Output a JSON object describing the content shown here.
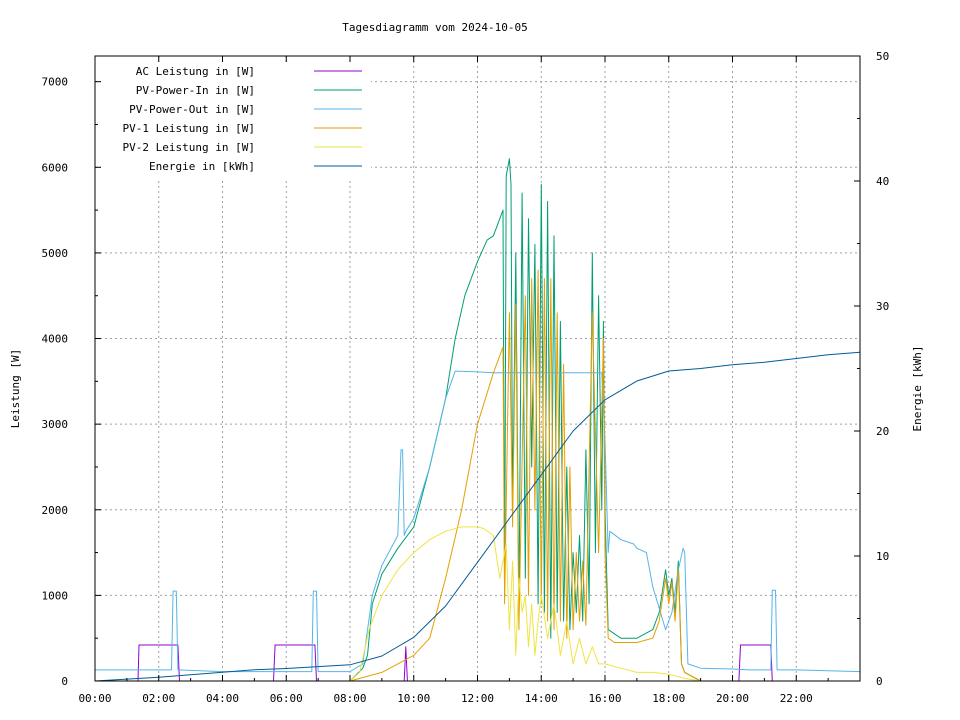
{
  "chart_data": {
    "type": "line",
    "title": "Tagesdiagramm vom 2024-10-05",
    "xlabel": "",
    "ylabel": "Leistung [W]",
    "y2label": "Energie [kWh]",
    "x_unit": "hours",
    "xlim": [
      0,
      24
    ],
    "ylim": [
      0,
      7300
    ],
    "y2lim": [
      0,
      50
    ],
    "grid": true,
    "legend_position": "top-left",
    "x_ticks": [
      {
        "v": 0,
        "label": "00:00"
      },
      {
        "v": 2,
        "label": "02:00"
      },
      {
        "v": 4,
        "label": "04:00"
      },
      {
        "v": 6,
        "label": "06:00"
      },
      {
        "v": 8,
        "label": "08:00"
      },
      {
        "v": 10,
        "label": "10:00"
      },
      {
        "v": 12,
        "label": "12:00"
      },
      {
        "v": 14,
        "label": "14:00"
      },
      {
        "v": 16,
        "label": "16:00"
      },
      {
        "v": 18,
        "label": "18:00"
      },
      {
        "v": 20,
        "label": "20:00"
      },
      {
        "v": 22,
        "label": "22:00"
      }
    ],
    "y_ticks": [
      {
        "v": 0,
        "label": "0"
      },
      {
        "v": 1000,
        "label": "1000"
      },
      {
        "v": 2000,
        "label": "2000"
      },
      {
        "v": 3000,
        "label": "3000"
      },
      {
        "v": 4000,
        "label": "4000"
      },
      {
        "v": 5000,
        "label": "5000"
      },
      {
        "v": 6000,
        "label": "6000"
      },
      {
        "v": 7000,
        "label": "7000"
      }
    ],
    "y2_ticks": [
      {
        "v": 0,
        "label": "0"
      },
      {
        "v": 10,
        "label": "10"
      },
      {
        "v": 20,
        "label": "20"
      },
      {
        "v": 30,
        "label": "30"
      },
      {
        "v": 40,
        "label": "40"
      },
      {
        "v": 50,
        "label": "50"
      }
    ],
    "series": [
      {
        "name": "AC Leistung in [W]",
        "color": "#9400d3",
        "axis": "y1",
        "x": [
          0,
          1.35,
          1.38,
          2.6,
          2.65,
          4.0,
          5.0,
          5.6,
          5.65,
          6.9,
          6.95,
          8.0,
          8.6,
          9.0,
          9.7,
          9.75,
          9.8,
          9.85,
          20.2,
          20.25,
          21.2,
          21.25,
          24
        ],
        "y": [
          0,
          0,
          420,
          420,
          0,
          0,
          0,
          0,
          420,
          420,
          0,
          0,
          0,
          0,
          0,
          400,
          0,
          0,
          0,
          420,
          420,
          0,
          0
        ]
      },
      {
        "name": "PV-Power-In in [W]",
        "color": "#009e73",
        "axis": "y1",
        "x": [
          8.0,
          8.4,
          8.55,
          8.7,
          9.0,
          9.5,
          10.0,
          10.5,
          11.0,
          11.3,
          11.6,
          12.0,
          12.3,
          12.5,
          12.8,
          12.85,
          12.9,
          13.0,
          13.05,
          13.1,
          13.2,
          13.3,
          13.4,
          13.5,
          13.6,
          13.7,
          13.8,
          13.9,
          14.0,
          14.1,
          14.2,
          14.3,
          14.4,
          14.5,
          14.6,
          14.7,
          14.8,
          14.9,
          15.0,
          15.1,
          15.2,
          15.3,
          15.4,
          15.5,
          15.6,
          15.7,
          15.8,
          15.9,
          15.95,
          16.0,
          16.1,
          16.3,
          16.5,
          17.0,
          17.5,
          17.7,
          17.9,
          18.0,
          18.1,
          18.2,
          18.3,
          18.4,
          18.5,
          19.0
        ],
        "y": [
          0,
          150,
          300,
          900,
          1250,
          1550,
          1800,
          2500,
          3300,
          4000,
          4500,
          4900,
          5150,
          5200,
          5500,
          1000,
          5900,
          6100,
          5800,
          2000,
          5000,
          800,
          5700,
          1200,
          5400,
          2500,
          5100,
          900,
          5800,
          800,
          5600,
          500,
          5200,
          800,
          4200,
          700,
          2500,
          600,
          1500,
          800,
          1700,
          700,
          2700,
          900,
          5000,
          1500,
          4500,
          2000,
          4200,
          2000,
          600,
          550,
          500,
          500,
          600,
          800,
          1300,
          1000,
          1200,
          800,
          1400,
          200,
          100,
          0
        ]
      },
      {
        "name": "PV-Power-Out in [W]",
        "color": "#56b4e9",
        "axis": "y1",
        "x": [
          0,
          2.4,
          2.45,
          2.55,
          2.6,
          4.0,
          6.8,
          6.85,
          6.95,
          7.0,
          8.0,
          8.4,
          8.7,
          9.0,
          9.5,
          9.6,
          9.65,
          9.7,
          9.75,
          10.0,
          10.5,
          11.0,
          11.3,
          12.0,
          12.5,
          13.0,
          13.5,
          14.0,
          14.5,
          15.0,
          15.5,
          15.9,
          16.0,
          16.1,
          16.15,
          16.5,
          16.9,
          17.0,
          17.3,
          17.5,
          17.9,
          18.1,
          18.3,
          18.45,
          18.5,
          18.6,
          19.0,
          20.0,
          20.5,
          21.2,
          21.25,
          21.35,
          21.4,
          22.0,
          23.0,
          24.0
        ],
        "y": [
          130,
          130,
          1050,
          1050,
          130,
          110,
          110,
          1050,
          1050,
          110,
          110,
          200,
          1000,
          1350,
          1700,
          2700,
          2700,
          1700,
          1750,
          1900,
          2500,
          3300,
          3620,
          3610,
          3600,
          3600,
          3600,
          3600,
          3600,
          3600,
          3600,
          3600,
          2800,
          1500,
          1750,
          1650,
          1600,
          1550,
          1500,
          1100,
          600,
          800,
          1300,
          1550,
          1500,
          200,
          150,
          140,
          130,
          130,
          1060,
          1060,
          130,
          130,
          120,
          110
        ]
      },
      {
        "name": "PV-1 Leistung in [W]",
        "color": "#e69f00",
        "axis": "y1",
        "x": [
          8.0,
          9.0,
          9.5,
          10.0,
          10.5,
          11.0,
          11.5,
          12.0,
          12.5,
          12.8,
          12.85,
          13.0,
          13.1,
          13.2,
          13.3,
          13.5,
          13.6,
          13.7,
          13.8,
          13.9,
          14.0,
          14.1,
          14.2,
          14.3,
          14.4,
          14.5,
          14.6,
          14.7,
          14.8,
          14.9,
          15.0,
          15.1,
          15.2,
          15.3,
          15.4,
          15.5,
          15.6,
          15.8,
          15.95,
          16.0,
          16.1,
          16.3,
          16.5,
          17.0,
          17.5,
          17.7,
          17.9,
          18.0,
          18.1,
          18.2,
          18.3,
          18.4,
          18.5,
          19.0
        ],
        "y": [
          0,
          100,
          200,
          300,
          500,
          1200,
          2000,
          3000,
          3600,
          3900,
          900,
          4300,
          1800,
          4400,
          600,
          4500,
          1000,
          4700,
          2000,
          4800,
          900,
          4700,
          700,
          4700,
          600,
          4300,
          700,
          3700,
          500,
          2500,
          600,
          1500,
          700,
          1400,
          650,
          2500,
          4300,
          1500,
          4000,
          1500,
          500,
          450,
          450,
          450,
          500,
          700,
          1200,
          900,
          1150,
          700,
          1300,
          200,
          100,
          0
        ]
      },
      {
        "name": "PV-2 Leistung in [W]",
        "color": "#f0e442",
        "axis": "y1",
        "x": [
          8.0,
          8.3,
          8.6,
          9.0,
          9.5,
          10.0,
          10.5,
          11.0,
          11.5,
          12.0,
          12.2,
          12.5,
          12.7,
          12.9,
          13.0,
          13.1,
          13.2,
          13.3,
          13.4,
          13.5,
          13.6,
          13.7,
          13.8,
          13.9,
          14.0,
          14.2,
          14.4,
          14.6,
          14.8,
          15.0,
          15.2,
          15.4,
          15.6,
          15.8,
          16.0,
          16.5,
          17.0,
          17.5,
          18.0,
          18.5,
          19.0
        ],
        "y": [
          0,
          100,
          600,
          1000,
          1300,
          1500,
          1650,
          1750,
          1800,
          1800,
          1780,
          1700,
          1200,
          1600,
          600,
          1400,
          300,
          1200,
          800,
          1000,
          400,
          900,
          300,
          700,
          1000,
          500,
          900,
          300,
          700,
          200,
          500,
          200,
          400,
          200,
          200,
          150,
          100,
          100,
          80,
          30,
          0
        ]
      },
      {
        "name": "Energie in [kWh]",
        "color": "#005b9a",
        "axis": "y2",
        "x": [
          0,
          1.0,
          2.0,
          3.0,
          4.0,
          5.0,
          6.0,
          7.0,
          8.0,
          9.0,
          10.0,
          11.0,
          12.0,
          13.0,
          14.0,
          15.0,
          16.0,
          17.0,
          18.0,
          19.0,
          20.0,
          21.0,
          22.0,
          23.0,
          24.0
        ],
        "y": [
          0,
          0.15,
          0.3,
          0.5,
          0.7,
          0.9,
          1.0,
          1.15,
          1.3,
          2.0,
          3.5,
          6.0,
          9.5,
          13.0,
          16.5,
          20.0,
          22.5,
          24.0,
          24.8,
          25.0,
          25.3,
          25.5,
          25.8,
          26.1,
          26.3
        ]
      }
    ]
  }
}
